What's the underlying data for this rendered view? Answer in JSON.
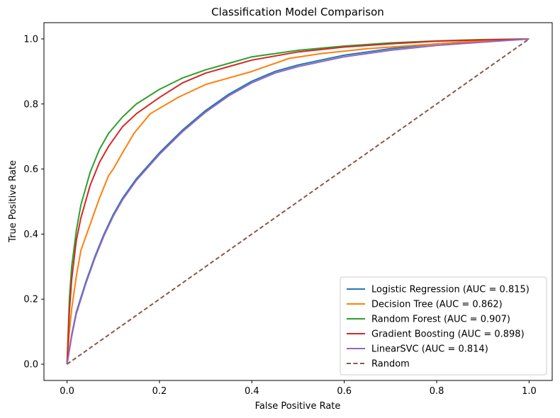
{
  "chart_data": {
    "type": "line",
    "title": "Classification Model Comparison",
    "xlabel": "False Positive Rate",
    "ylabel": "True Positive Rate",
    "xlim": [
      -0.05,
      1.05
    ],
    "ylim": [
      -0.05,
      1.05
    ],
    "xticks": [
      "0.0",
      "0.2",
      "0.4",
      "0.6",
      "0.8",
      "1.0"
    ],
    "yticks": [
      "0.0",
      "0.2",
      "0.4",
      "0.6",
      "0.8",
      "1.0"
    ],
    "grid": false,
    "legend_position": "lower-right",
    "series": [
      {
        "name": "Logistic Regression (AUC = 0.815)",
        "color": "#1f77b4",
        "style": "solid",
        "x": [
          0,
          0.01,
          0.02,
          0.04,
          0.06,
          0.08,
          0.1,
          0.12,
          0.15,
          0.2,
          0.25,
          0.3,
          0.35,
          0.4,
          0.45,
          0.5,
          0.6,
          0.7,
          0.8,
          0.9,
          1.0
        ],
        "y": [
          0,
          0.09,
          0.16,
          0.25,
          0.33,
          0.4,
          0.46,
          0.51,
          0.57,
          0.65,
          0.72,
          0.78,
          0.83,
          0.87,
          0.9,
          0.92,
          0.95,
          0.97,
          0.985,
          0.993,
          1.0
        ]
      },
      {
        "name": "Decision Tree (AUC = 0.862)",
        "color": "#ff7f0e",
        "style": "solid",
        "x": [
          0,
          0.005,
          0.01,
          0.02,
          0.03,
          0.05,
          0.07,
          0.09,
          0.1,
          0.12,
          0.145,
          0.18,
          0.24,
          0.3,
          0.35,
          0.4,
          0.45,
          0.48,
          0.55,
          0.65,
          0.75,
          0.85,
          1.0
        ],
        "y": [
          0,
          0.1,
          0.17,
          0.27,
          0.35,
          0.43,
          0.51,
          0.58,
          0.6,
          0.65,
          0.71,
          0.77,
          0.82,
          0.86,
          0.88,
          0.9,
          0.925,
          0.94,
          0.955,
          0.97,
          0.98,
          0.99,
          1.0
        ]
      },
      {
        "name": "Random Forest (AUC = 0.907)",
        "color": "#2ca02c",
        "style": "solid",
        "x": [
          0,
          0.005,
          0.01,
          0.02,
          0.03,
          0.05,
          0.07,
          0.09,
          0.12,
          0.15,
          0.2,
          0.25,
          0.3,
          0.35,
          0.4,
          0.5,
          0.6,
          0.7,
          0.8,
          0.9,
          1.0
        ],
        "y": [
          0,
          0.2,
          0.3,
          0.41,
          0.49,
          0.59,
          0.66,
          0.71,
          0.76,
          0.8,
          0.845,
          0.88,
          0.905,
          0.925,
          0.945,
          0.965,
          0.978,
          0.988,
          0.994,
          0.998,
          1.0
        ]
      },
      {
        "name": "Gradient Boosting (AUC = 0.898)",
        "color": "#d62728",
        "style": "solid",
        "x": [
          0,
          0.005,
          0.01,
          0.02,
          0.03,
          0.05,
          0.07,
          0.09,
          0.12,
          0.15,
          0.2,
          0.25,
          0.3,
          0.35,
          0.4,
          0.5,
          0.6,
          0.7,
          0.8,
          0.9,
          1.0
        ],
        "y": [
          0,
          0.16,
          0.26,
          0.38,
          0.45,
          0.55,
          0.62,
          0.67,
          0.73,
          0.77,
          0.82,
          0.865,
          0.895,
          0.915,
          0.935,
          0.96,
          0.975,
          0.985,
          0.993,
          0.997,
          1.0
        ]
      },
      {
        "name": "LinearSVC (AUC = 0.814)",
        "color": "#9467bd",
        "style": "solid",
        "x": [
          0,
          0.01,
          0.02,
          0.04,
          0.06,
          0.08,
          0.1,
          0.12,
          0.15,
          0.2,
          0.25,
          0.3,
          0.35,
          0.4,
          0.45,
          0.5,
          0.6,
          0.7,
          0.8,
          0.9,
          1.0
        ],
        "y": [
          0,
          0.085,
          0.155,
          0.245,
          0.325,
          0.395,
          0.455,
          0.505,
          0.565,
          0.645,
          0.715,
          0.775,
          0.825,
          0.865,
          0.895,
          0.915,
          0.945,
          0.965,
          0.98,
          0.99,
          1.0
        ]
      },
      {
        "name": "Random",
        "color": "#8c564b",
        "style": "dashed",
        "x": [
          0,
          1
        ],
        "y": [
          0,
          1
        ]
      }
    ]
  }
}
